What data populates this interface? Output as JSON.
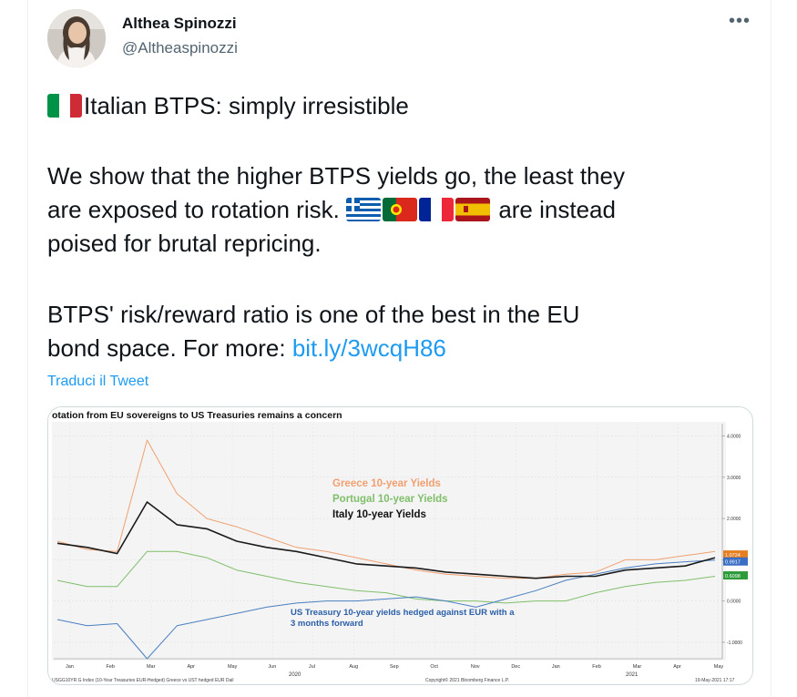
{
  "author": {
    "name": "Althea Spinozzi",
    "handle": "@Altheaspinozzi"
  },
  "tweet": {
    "line1": "Italian BTPS: simply irresistible",
    "line2": "We show that the higher BTPS yields go, the least they",
    "line3a": "are exposed to rotation risk.",
    "line3b": "are instead",
    "line4": "poised for brutal repricing.",
    "line5": "BTPS' risk/reward ratio is one of the best in the EU",
    "line6a": "bond space. For more:",
    "link": "bit.ly/3wcqH86",
    "translate": "Traduci il Tweet"
  },
  "icons": {
    "more": "more-options-icon",
    "flags": [
      "flag-italy-icon",
      "flag-greece-icon",
      "flag-portugal-icon",
      "flag-france-icon",
      "flag-spain-icon"
    ]
  },
  "chart_data": {
    "type": "line",
    "title": "otation from EU sovereigns to US Treasuries remains a concern",
    "x_tick_labels": [
      "Jan",
      "Feb",
      "Mar",
      "Apr",
      "May",
      "Jun",
      "Jul",
      "Aug",
      "Sep",
      "Oct",
      "Nov",
      "Dec",
      "Jan",
      "Feb",
      "Mar",
      "Apr",
      "May"
    ],
    "year_labels": [
      "2020",
      "2021"
    ],
    "ylim": [
      -1.4,
      4.3
    ],
    "y_ticks": [
      4.0,
      3.0,
      2.0,
      1.0,
      0.0,
      -1.0
    ],
    "y_tick_labels": [
      "4.0000",
      "3.0000",
      "2.0000",
      "1.0000",
      "0.0000",
      "-1.0000"
    ],
    "last_value_labels": [
      "1.0724",
      "0.9917",
      "0.6098"
    ],
    "annotations": {
      "greece": "Greece 10-year Yields",
      "portugal": "Portugal 10-year Yields",
      "italy": "Italy 10-year Yields",
      "us1": "US Treasury 10-year yields hedged against EUR with a",
      "us2": "3 months forward"
    },
    "footer_left": "USGG10YR G Index (10-Year Treasuries EUR-Hedged) Greece vs UST hedged EUR  Dail",
    "footer_center": "Copyright© 2021 Bloomberg Finance L.P.",
    "footer_right": "19-May-2021 17:17",
    "colors": {
      "greece": "#f0a070",
      "portugal": "#7fbf6a",
      "italy": "#1a1a1a",
      "us": "#4a7fc0"
    },
    "series": [
      {
        "name": "Greece 10-year Yields",
        "values": [
          1.45,
          1.25,
          1.2,
          3.9,
          2.6,
          2.0,
          1.8,
          1.55,
          1.3,
          1.2,
          1.05,
          0.9,
          0.75,
          0.65,
          0.6,
          0.55,
          0.55,
          0.65,
          0.7,
          1.0,
          1.0,
          1.1,
          1.2
        ]
      },
      {
        "name": "Portugal 10-year Yields",
        "values": [
          0.5,
          0.35,
          0.35,
          1.2,
          1.2,
          1.05,
          0.75,
          0.6,
          0.45,
          0.35,
          0.25,
          0.2,
          0.05,
          0.0,
          0.0,
          -0.05,
          0.0,
          0.0,
          0.2,
          0.35,
          0.45,
          0.5,
          0.6
        ]
      },
      {
        "name": "Italy 10-year Yields",
        "values": [
          1.4,
          1.3,
          1.15,
          2.4,
          1.85,
          1.75,
          1.45,
          1.3,
          1.2,
          1.05,
          0.9,
          0.85,
          0.8,
          0.7,
          0.65,
          0.6,
          0.55,
          0.6,
          0.6,
          0.75,
          0.8,
          0.85,
          1.05
        ]
      },
      {
        "name": "US Treasury 10-year yields hedged against EUR with a 3 months forward",
        "values": [
          -0.45,
          -0.6,
          -0.55,
          -1.4,
          -0.6,
          -0.45,
          -0.3,
          -0.15,
          -0.05,
          0.0,
          0.0,
          0.05,
          0.1,
          0.0,
          -0.15,
          0.05,
          0.25,
          0.5,
          0.65,
          0.8,
          0.9,
          0.95,
          0.99
        ]
      }
    ]
  }
}
